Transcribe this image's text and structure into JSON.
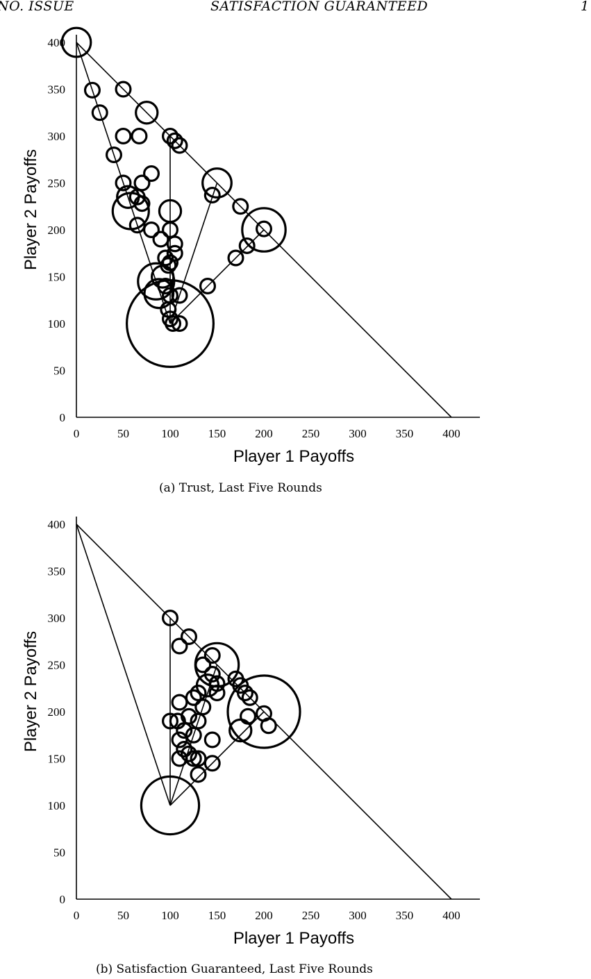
{
  "header": {
    "left": "NO. ISSUE",
    "center": "SATISFACTION GUARANTEED",
    "right": "1"
  },
  "chart_data": [
    {
      "type": "scatter",
      "caption": "(a) Trust, Last Five Rounds",
      "xlabel": "Player 1 Payoffs",
      "ylabel": "Player 2 Payoffs",
      "xlim": [
        0,
        430
      ],
      "ylim": [
        0,
        430
      ],
      "xticks": [
        0,
        50,
        100,
        150,
        200,
        250,
        300,
        350,
        400
      ],
      "yticks": [
        0,
        50,
        100,
        150,
        200,
        250,
        300,
        350,
        400
      ],
      "grid": false,
      "encoding": "circle size = frequency",
      "reference_lines": [
        [
          [
            0,
            400
          ],
          [
            400,
            0
          ]
        ],
        [
          [
            0,
            400
          ],
          [
            100,
            100
          ]
        ],
        [
          [
            100,
            300
          ],
          [
            100,
            100
          ]
        ],
        [
          [
            150,
            250
          ],
          [
            100,
            100
          ]
        ],
        [
          [
            200,
            200
          ],
          [
            100,
            100
          ]
        ]
      ],
      "points": [
        {
          "x": 0,
          "y": 400,
          "size": 4
        },
        {
          "x": 17,
          "y": 349,
          "size": 2
        },
        {
          "x": 25,
          "y": 325,
          "size": 2
        },
        {
          "x": 50,
          "y": 350,
          "size": 2
        },
        {
          "x": 75,
          "y": 325,
          "size": 3
        },
        {
          "x": 40,
          "y": 280,
          "size": 2
        },
        {
          "x": 50,
          "y": 300,
          "size": 2
        },
        {
          "x": 67,
          "y": 300,
          "size": 2
        },
        {
          "x": 100,
          "y": 300,
          "size": 2
        },
        {
          "x": 105,
          "y": 295,
          "size": 2
        },
        {
          "x": 110,
          "y": 290,
          "size": 2
        },
        {
          "x": 50,
          "y": 250,
          "size": 2
        },
        {
          "x": 70,
          "y": 250,
          "size": 2
        },
        {
          "x": 80,
          "y": 260,
          "size": 2
        },
        {
          "x": 55,
          "y": 235,
          "size": 3
        },
        {
          "x": 65,
          "y": 235,
          "size": 2
        },
        {
          "x": 70,
          "y": 228,
          "size": 2
        },
        {
          "x": 58,
          "y": 220,
          "size": 5
        },
        {
          "x": 65,
          "y": 205,
          "size": 2
        },
        {
          "x": 80,
          "y": 200,
          "size": 2
        },
        {
          "x": 100,
          "y": 220,
          "size": 3
        },
        {
          "x": 100,
          "y": 200,
          "size": 2
        },
        {
          "x": 105,
          "y": 185,
          "size": 2
        },
        {
          "x": 90,
          "y": 190,
          "size": 2
        },
        {
          "x": 105,
          "y": 175,
          "size": 2
        },
        {
          "x": 95,
          "y": 170,
          "size": 2
        },
        {
          "x": 98,
          "y": 162,
          "size": 2
        },
        {
          "x": 100,
          "y": 165,
          "size": 2
        },
        {
          "x": 92,
          "y": 150,
          "size": 3
        },
        {
          "x": 85,
          "y": 145,
          "size": 5
        },
        {
          "x": 95,
          "y": 140,
          "size": 2
        },
        {
          "x": 88,
          "y": 132,
          "size": 4
        },
        {
          "x": 100,
          "y": 130,
          "size": 2
        },
        {
          "x": 110,
          "y": 130,
          "size": 2
        },
        {
          "x": 98,
          "y": 115,
          "size": 2
        },
        {
          "x": 100,
          "y": 100,
          "size": 12
        },
        {
          "x": 100,
          "y": 105,
          "size": 2
        },
        {
          "x": 103,
          "y": 100,
          "size": 2
        },
        {
          "x": 110,
          "y": 100,
          "size": 2
        },
        {
          "x": 150,
          "y": 250,
          "size": 4
        },
        {
          "x": 145,
          "y": 237,
          "size": 2
        },
        {
          "x": 175,
          "y": 225,
          "size": 2
        },
        {
          "x": 200,
          "y": 200,
          "size": 6
        },
        {
          "x": 200,
          "y": 201,
          "size": 2
        },
        {
          "x": 182,
          "y": 183,
          "size": 2
        },
        {
          "x": 170,
          "y": 170,
          "size": 2
        },
        {
          "x": 140,
          "y": 140,
          "size": 2
        }
      ]
    },
    {
      "type": "scatter",
      "caption": "(b) Satisfaction Guaranteed, Last Five Rounds",
      "xlabel": "Player 1 Payoffs",
      "ylabel": "Player 2 Payoffs",
      "xlim": [
        0,
        430
      ],
      "ylim": [
        0,
        430
      ],
      "xticks": [
        0,
        50,
        100,
        150,
        200,
        250,
        300,
        350,
        400
      ],
      "yticks": [
        0,
        50,
        100,
        150,
        200,
        250,
        300,
        350,
        400
      ],
      "grid": false,
      "encoding": "circle size = frequency",
      "reference_lines": [
        [
          [
            0,
            400
          ],
          [
            400,
            0
          ]
        ],
        [
          [
            0,
            400
          ],
          [
            100,
            100
          ]
        ],
        [
          [
            100,
            300
          ],
          [
            100,
            100
          ]
        ],
        [
          [
            150,
            250
          ],
          [
            100,
            100
          ]
        ],
        [
          [
            200,
            200
          ],
          [
            100,
            100
          ]
        ]
      ],
      "points": [
        {
          "x": 100,
          "y": 300,
          "size": 2
        },
        {
          "x": 120,
          "y": 280,
          "size": 2
        },
        {
          "x": 110,
          "y": 270,
          "size": 2
        },
        {
          "x": 150,
          "y": 250,
          "size": 6
        },
        {
          "x": 145,
          "y": 260,
          "size": 2
        },
        {
          "x": 135,
          "y": 250,
          "size": 2
        },
        {
          "x": 145,
          "y": 240,
          "size": 2
        },
        {
          "x": 150,
          "y": 230,
          "size": 2
        },
        {
          "x": 140,
          "y": 228,
          "size": 3
        },
        {
          "x": 130,
          "y": 220,
          "size": 2
        },
        {
          "x": 125,
          "y": 215,
          "size": 2
        },
        {
          "x": 150,
          "y": 220,
          "size": 2
        },
        {
          "x": 135,
          "y": 205,
          "size": 2
        },
        {
          "x": 110,
          "y": 210,
          "size": 2
        },
        {
          "x": 170,
          "y": 235,
          "size": 2
        },
        {
          "x": 175,
          "y": 228,
          "size": 2
        },
        {
          "x": 180,
          "y": 220,
          "size": 2
        },
        {
          "x": 185,
          "y": 215,
          "size": 2
        },
        {
          "x": 200,
          "y": 200,
          "size": 10
        },
        {
          "x": 200,
          "y": 198,
          "size": 2
        },
        {
          "x": 205,
          "y": 185,
          "size": 2
        },
        {
          "x": 183,
          "y": 195,
          "size": 2
        },
        {
          "x": 175,
          "y": 180,
          "size": 3
        },
        {
          "x": 100,
          "y": 190,
          "size": 2
        },
        {
          "x": 108,
          "y": 190,
          "size": 2
        },
        {
          "x": 120,
          "y": 195,
          "size": 2
        },
        {
          "x": 130,
          "y": 190,
          "size": 2
        },
        {
          "x": 115,
          "y": 180,
          "size": 2
        },
        {
          "x": 125,
          "y": 175,
          "size": 2
        },
        {
          "x": 110,
          "y": 170,
          "size": 2
        },
        {
          "x": 145,
          "y": 170,
          "size": 2
        },
        {
          "x": 115,
          "y": 160,
          "size": 2
        },
        {
          "x": 120,
          "y": 155,
          "size": 2
        },
        {
          "x": 125,
          "y": 150,
          "size": 2
        },
        {
          "x": 110,
          "y": 150,
          "size": 2
        },
        {
          "x": 130,
          "y": 150,
          "size": 2
        },
        {
          "x": 145,
          "y": 145,
          "size": 2
        },
        {
          "x": 130,
          "y": 133,
          "size": 2
        },
        {
          "x": 100,
          "y": 100,
          "size": 8
        }
      ]
    }
  ]
}
